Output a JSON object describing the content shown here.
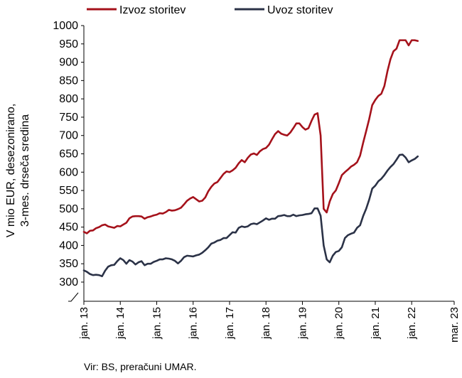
{
  "chart_data": {
    "type": "line",
    "ylabel_lines": [
      "V mio EUR, desezonirano,",
      "3-mes. drseča sredina"
    ],
    "ylim": [
      300,
      1000
    ],
    "yticks": [
      300,
      350,
      400,
      450,
      500,
      550,
      600,
      650,
      700,
      750,
      800,
      850,
      900,
      950,
      1000
    ],
    "x_start": "2013-01",
    "x_end": "2023-03",
    "xtick_labels": [
      "jan. 13",
      "jan. 14",
      "jan. 15",
      "jan. 16",
      "jan. 17",
      "jan. 18",
      "jan. 19",
      "jan. 20",
      "jan. 21",
      "jan. 22",
      "mar. 23"
    ],
    "xtick_dates": [
      "2013-01",
      "2014-01",
      "2015-01",
      "2016-01",
      "2017-01",
      "2018-01",
      "2019-01",
      "2020-01",
      "2021-01",
      "2022-01",
      "2023-03"
    ],
    "legend_position": "top",
    "series": [
      {
        "name": "Izvoz storitev",
        "color": "#a5121b",
        "values": [
          437,
          433,
          440,
          441,
          447,
          450,
          455,
          457,
          452,
          450,
          448,
          453,
          452,
          457,
          462,
          474,
          479,
          480,
          480,
          479,
          473,
          477,
          479,
          482,
          484,
          488,
          487,
          491,
          497,
          495,
          496,
          499,
          503,
          512,
          522,
          528,
          532,
          526,
          520,
          522,
          531,
          548,
          560,
          569,
          573,
          584,
          595,
          602,
          600,
          605,
          612,
          624,
          633,
          627,
          639,
          648,
          651,
          647,
          657,
          663,
          666,
          675,
          690,
          704,
          712,
          705,
          702,
          700,
          708,
          720,
          733,
          733,
          723,
          716,
          720,
          740,
          757,
          761,
          700,
          500,
          490,
          520,
          540,
          550,
          570,
          592,
          600,
          607,
          615,
          620,
          627,
          645,
          680,
          712,
          745,
          783,
          797,
          808,
          814,
          835,
          875,
          908,
          930,
          937,
          960,
          960,
          960,
          946,
          960,
          960,
          958
        ]
      },
      {
        "name": "Uvoz storitev",
        "color": "#2b3247",
        "values": [
          332,
          328,
          322,
          319,
          320,
          319,
          316,
          331,
          342,
          346,
          347,
          357,
          365,
          360,
          350,
          360,
          356,
          348,
          354,
          357,
          346,
          350,
          350,
          355,
          358,
          362,
          362,
          365,
          364,
          362,
          358,
          351,
          358,
          368,
          372,
          371,
          370,
          373,
          375,
          380,
          387,
          395,
          405,
          408,
          413,
          415,
          420,
          420,
          428,
          436,
          435,
          448,
          452,
          450,
          452,
          458,
          460,
          458,
          463,
          468,
          474,
          470,
          473,
          473,
          480,
          481,
          483,
          480,
          480,
          484,
          480,
          482,
          483,
          485,
          486,
          488,
          501,
          501,
          481,
          400,
          362,
          354,
          372,
          382,
          385,
          395,
          420,
          428,
          432,
          435,
          448,
          455,
          480,
          500,
          525,
          555,
          563,
          575,
          582,
          592,
          604,
          614,
          622,
          634,
          647,
          648,
          640,
          627,
          632,
          636,
          643
        ]
      }
    ],
    "source_text": "Vir: BS, preračuni UMAR."
  }
}
